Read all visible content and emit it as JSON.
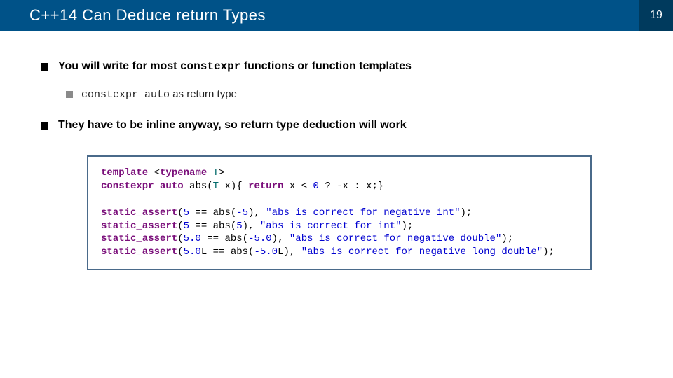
{
  "title": "C++14 Can Deduce return Types",
  "slide_number": "19",
  "colors": {
    "titlebar_bg": "#005288",
    "slidenum_bg": "#003a5d",
    "title_text": "#ffffff",
    "bullet1_square": "#000000",
    "bullet2_square": "#8a8a8a",
    "code_border": "#4a6a8a",
    "code_keyword": "#7a0e7a",
    "code_type": "#006a6a",
    "code_literal": "#0000d0"
  },
  "typography": {
    "title_fontsize": 22,
    "body_fontsize": 16,
    "sub_fontsize": 15,
    "code_fontsize": 14,
    "title_font": "Trebuchet MS",
    "body_font": "Arial",
    "code_font": "Courier New"
  },
  "bullets": [
    {
      "level": 1,
      "prefix": "You will write for most ",
      "mono": "constexpr",
      "suffix": " functions or function templates"
    },
    {
      "level": 2,
      "prefix": "",
      "mono": "constexpr auto",
      "suffix": " as return type"
    },
    {
      "level": 1,
      "prefix": "They have to be inline anyway, so return type deduction will work",
      "mono": "",
      "suffix": ""
    }
  ],
  "code": {
    "tokens": [
      [
        {
          "t": "template",
          "c": "kw"
        },
        {
          "t": " <"
        },
        {
          "t": "typename",
          "c": "kw"
        },
        {
          "t": " "
        },
        {
          "t": "T",
          "c": "typ"
        },
        {
          "t": ">"
        }
      ],
      [
        {
          "t": "constexpr",
          "c": "kw"
        },
        {
          "t": " "
        },
        {
          "t": "auto",
          "c": "kw"
        },
        {
          "t": " abs("
        },
        {
          "t": "T",
          "c": "typ"
        },
        {
          "t": " x){ "
        },
        {
          "t": "return",
          "c": "kw"
        },
        {
          "t": " x < "
        },
        {
          "t": "0",
          "c": "num"
        },
        {
          "t": " ? -x : x;}"
        }
      ],
      [],
      [
        {
          "t": "static_assert",
          "c": "kw"
        },
        {
          "t": "("
        },
        {
          "t": "5",
          "c": "num"
        },
        {
          "t": " == abs("
        },
        {
          "t": "-5",
          "c": "num"
        },
        {
          "t": "), "
        },
        {
          "t": "\"abs is correct for negative int\"",
          "c": "str"
        },
        {
          "t": ");"
        }
      ],
      [
        {
          "t": "static_assert",
          "c": "kw"
        },
        {
          "t": "("
        },
        {
          "t": "5",
          "c": "num"
        },
        {
          "t": " == abs("
        },
        {
          "t": "5",
          "c": "num"
        },
        {
          "t": "), "
        },
        {
          "t": "\"abs is correct for int\"",
          "c": "str"
        },
        {
          "t": ");"
        }
      ],
      [
        {
          "t": "static_assert",
          "c": "kw"
        },
        {
          "t": "("
        },
        {
          "t": "5.0",
          "c": "num"
        },
        {
          "t": " == abs("
        },
        {
          "t": "-5.0",
          "c": "num"
        },
        {
          "t": "), "
        },
        {
          "t": "\"abs is correct for negative double\"",
          "c": "str"
        },
        {
          "t": ");"
        }
      ],
      [
        {
          "t": "static_assert",
          "c": "kw"
        },
        {
          "t": "("
        },
        {
          "t": "5.0",
          "c": "num"
        },
        {
          "t": "L == abs("
        },
        {
          "t": "-5.0",
          "c": "num"
        },
        {
          "t": "L), "
        },
        {
          "t": "\"abs is correct for negative long double\"",
          "c": "str"
        },
        {
          "t": ");"
        }
      ]
    ]
  }
}
